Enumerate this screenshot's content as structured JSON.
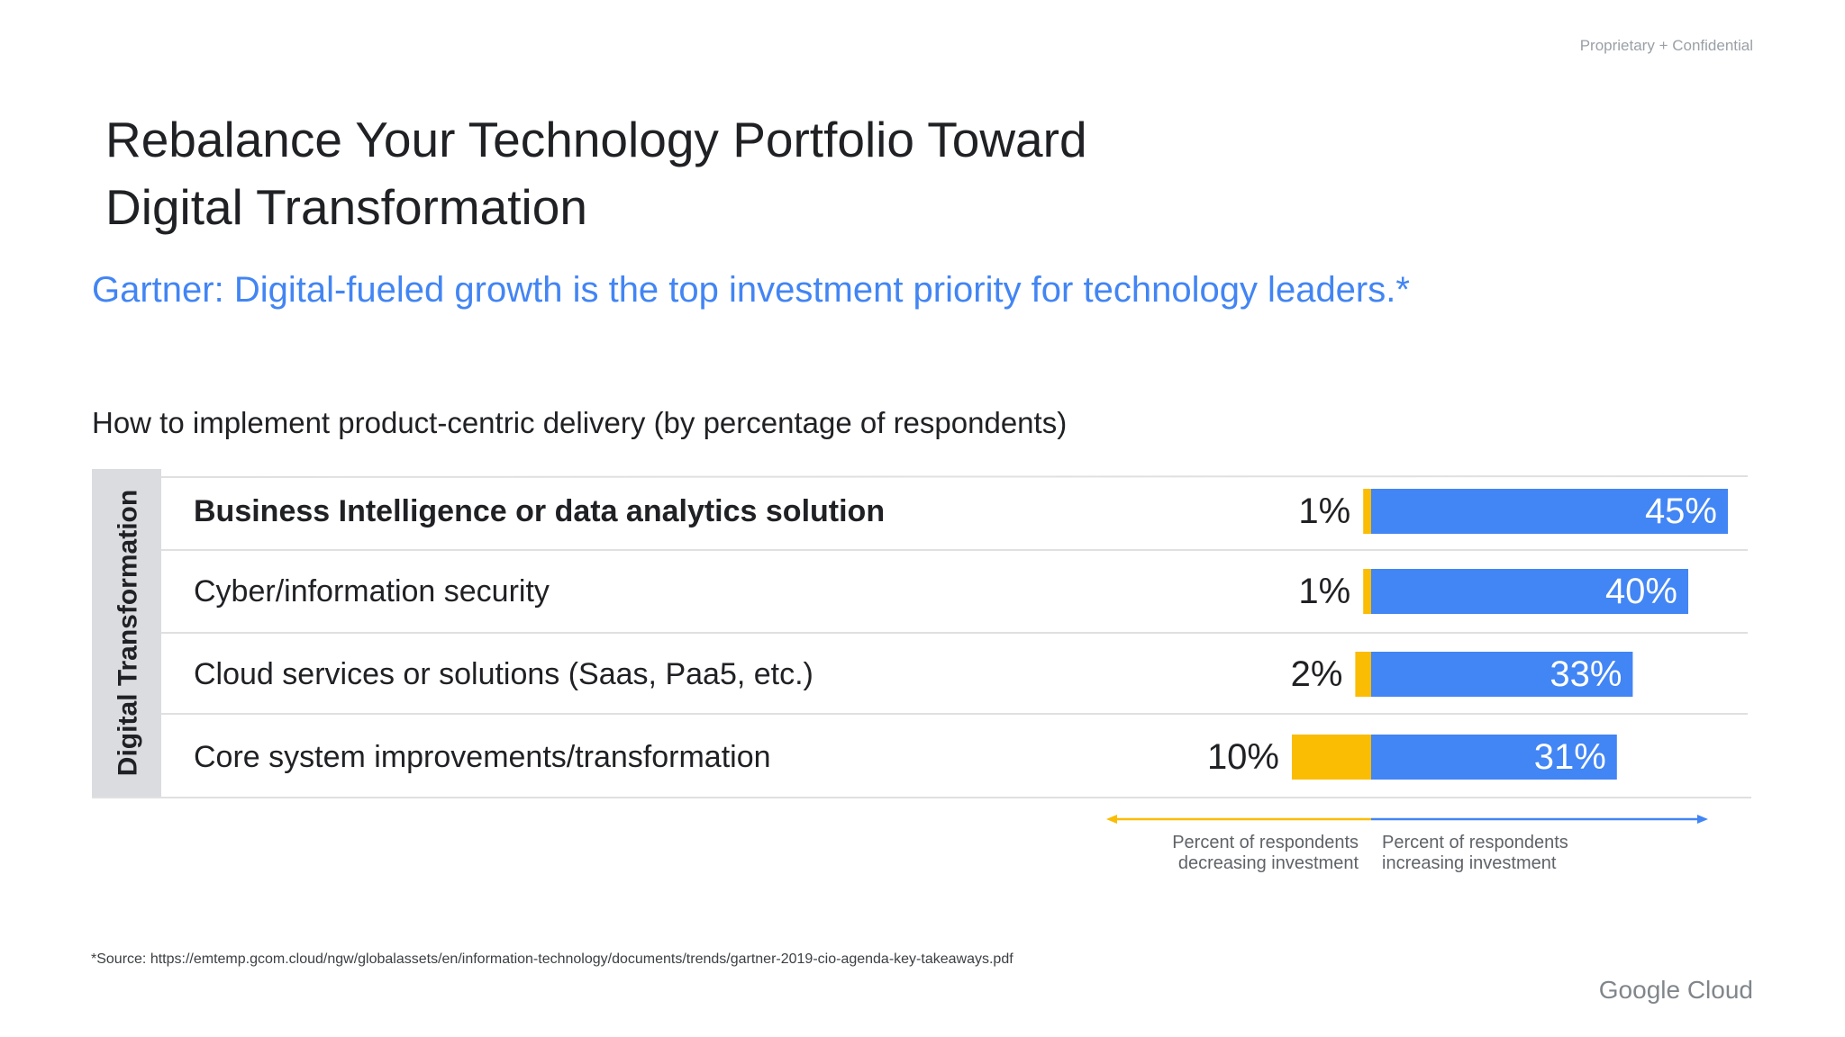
{
  "header": {
    "confidential": "Proprietary + Confidential",
    "title_line1": "Rebalance Your Technology Portfolio Toward",
    "title_line2": "Digital Transformation",
    "subtitle": "Gartner: Digital-fueled growth is the top investment priority for technology leaders.*"
  },
  "footer": {
    "source": "*Source: https://emtemp.gcom.cloud/ngw/globalassets/en/information-technology/documents/trends/gartner-2019-cio-agenda-key-takeaways.pdf",
    "brand": "Google Cloud"
  },
  "colors": {
    "increase": "#4285f4",
    "decrease": "#fbbc04",
    "category_band": "#dadce0",
    "divider": "#e0e0e0"
  },
  "chart_data": {
    "type": "bar",
    "title": "How to implement product-centric delivery (by percentage of respondents)",
    "group_label": "Digital Transformation",
    "categories": [
      "Business Intelligence or data analytics solution",
      "Cyber/information security",
      "Cloud services or solutions (Saas, Paa5, etc.)",
      "Core system improvements/transformation"
    ],
    "series": [
      {
        "name": "Percent of respondents decreasing investment",
        "values": [
          1,
          1,
          2,
          10
        ]
      },
      {
        "name": "Percent of respondents increasing investment",
        "values": [
          45,
          40,
          33,
          31
        ]
      }
    ],
    "value_labels": {
      "decrease": [
        "1%",
        "1%",
        "2%",
        "10%"
      ],
      "increase": [
        "45%",
        "40%",
        "33%",
        "31%"
      ]
    },
    "legend": {
      "decrease_line1": "Percent of respondents",
      "decrease_line2": "decreasing investment",
      "increase_line1": "Percent of respondents",
      "increase_line2": "increasing investment"
    },
    "bold_first_category": true,
    "legend_position": "bottom"
  }
}
